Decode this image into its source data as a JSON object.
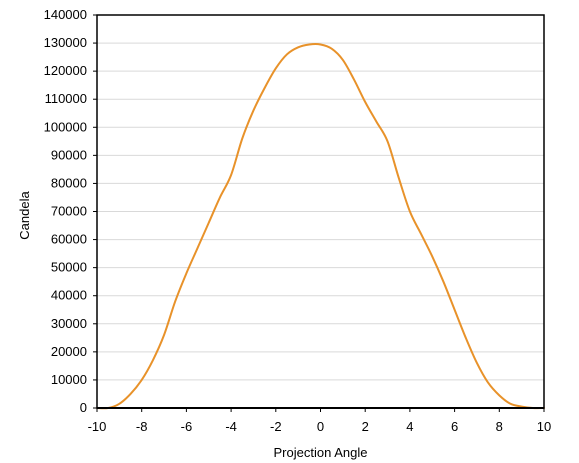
{
  "chart_data": {
    "type": "line",
    "title": "",
    "xlabel": "Projection Angle",
    "ylabel": "Candela",
    "xlim": [
      -10,
      10
    ],
    "ylim": [
      0,
      140000
    ],
    "x_ticks": [
      -10,
      -8,
      -6,
      -4,
      -2,
      0,
      2,
      4,
      6,
      8,
      10
    ],
    "y_ticks": [
      0,
      10000,
      20000,
      30000,
      40000,
      50000,
      60000,
      70000,
      80000,
      90000,
      100000,
      110000,
      120000,
      130000,
      140000
    ],
    "grid": "horizontal",
    "legend": "none",
    "series": [
      {
        "color": "#e8922a",
        "x": [
          -10,
          -9.5,
          -9,
          -8.5,
          -8,
          -7.5,
          -7,
          -6.5,
          -6,
          -5.5,
          -5,
          -4.5,
          -4,
          -3.5,
          -3,
          -2.5,
          -2,
          -1.5,
          -1,
          -0.5,
          0,
          0.5,
          1,
          1.5,
          2,
          2.5,
          3,
          3.5,
          4,
          4.5,
          5,
          5.5,
          6,
          6.5,
          7,
          7.5,
          8,
          8.5,
          9,
          9.5,
          10
        ],
        "y": [
          0,
          0,
          1500,
          5000,
          10000,
          17000,
          26000,
          38000,
          48000,
          57000,
          66000,
          75000,
          83000,
          96000,
          106000,
          114000,
          121000,
          126000,
          128500,
          129500,
          129500,
          128000,
          124000,
          117000,
          109000,
          102000,
          95000,
          82000,
          70000,
          62000,
          54000,
          45000,
          35000,
          25000,
          16000,
          9000,
          4500,
          1500,
          500,
          0,
          0
        ]
      }
    ]
  }
}
